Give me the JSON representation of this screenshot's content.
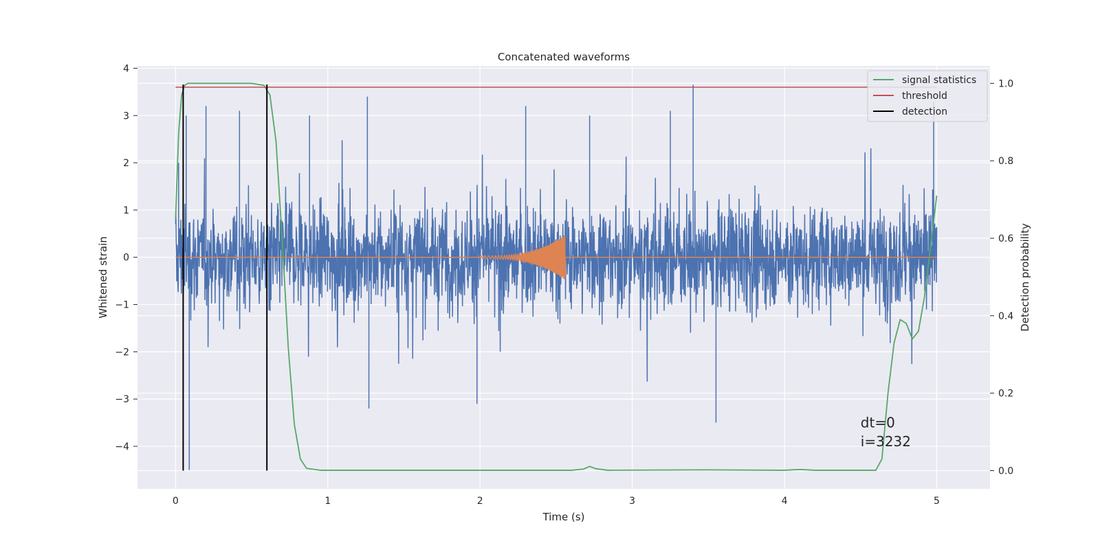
{
  "chart_data": {
    "type": "line",
    "title": "Concatenated waveforms",
    "xlabel": "Time (s)",
    "ylabel": "Whitened strain",
    "ylabel_right": "Detection probability",
    "xlim": [
      -0.25,
      5.35
    ],
    "ylim": [
      -4.9,
      4.05
    ],
    "ylim_right": [
      -0.047,
      1.045
    ],
    "x_ticks": [
      0,
      1,
      2,
      3,
      4,
      5
    ],
    "y_ticks": [
      -4,
      -3,
      -2,
      -1,
      0,
      1,
      2,
      3,
      4
    ],
    "y_ticks_right": [
      0.0,
      0.2,
      0.4,
      0.6,
      0.8,
      1.0
    ],
    "y_tick_labels": [
      "−4",
      "−3",
      "−2",
      "−1",
      "0",
      "1",
      "2",
      "3",
      "4"
    ],
    "y_tick_labels_right": [
      "0.0",
      "0.2",
      "0.4",
      "0.6",
      "0.8",
      "1.0"
    ],
    "grid": true,
    "legend_position": "top-right",
    "series": [
      {
        "key": "strain",
        "axis": "left",
        "color": "#4c72b0",
        "note_style": "dense noise band",
        "x_range": [
          0,
          5
        ],
        "core_amplitude": 1.2,
        "spike_maxima": [
          [
            0.02,
            2.0
          ],
          [
            0.07,
            3.0
          ],
          [
            0.09,
            -4.5
          ],
          [
            0.2,
            3.2
          ],
          [
            0.42,
            3.1
          ],
          [
            0.88,
            3.0
          ],
          [
            1.26,
            3.4
          ],
          [
            1.27,
            -3.2
          ],
          [
            1.98,
            -3.1
          ],
          [
            2.3,
            3.2
          ],
          [
            2.72,
            3.0
          ],
          [
            3.25,
            3.1
          ],
          [
            3.4,
            3.65
          ],
          [
            3.55,
            -3.5
          ],
          [
            4.98,
            3.3
          ]
        ]
      },
      {
        "key": "waveform",
        "axis": "left",
        "color": "#dd8452",
        "x_range": [
          0,
          5
        ],
        "chirp_start": 2.0,
        "chirp_end": 2.56,
        "chirp_peak_amplitude": 0.45
      },
      {
        "name": "signal statistics",
        "axis": "right",
        "color": "#55a868",
        "x": [
          0.0,
          0.02,
          0.04,
          0.06,
          0.08,
          0.12,
          0.3,
          0.5,
          0.58,
          0.62,
          0.66,
          0.7,
          0.74,
          0.78,
          0.82,
          0.86,
          0.95,
          1.5,
          2.6,
          2.68,
          2.72,
          2.76,
          2.84,
          3.5,
          4.0,
          4.1,
          4.2,
          4.6,
          4.64,
          4.68,
          4.72,
          4.76,
          4.8,
          4.84,
          4.88,
          4.92,
          4.96,
          5.0
        ],
        "y": [
          0.65,
          0.87,
          0.97,
          0.995,
          1.0,
          1.0,
          1.0,
          1.0,
          0.995,
          0.97,
          0.85,
          0.6,
          0.32,
          0.12,
          0.03,
          0.006,
          0.001,
          0.001,
          0.001,
          0.004,
          0.011,
          0.005,
          0.001,
          0.002,
          0.001,
          0.003,
          0.001,
          0.001,
          0.03,
          0.2,
          0.33,
          0.39,
          0.38,
          0.34,
          0.36,
          0.45,
          0.58,
          0.71
        ]
      },
      {
        "name": "threshold",
        "axis": "right",
        "color": "#c44e52",
        "x": [
          0,
          5
        ],
        "y": [
          0.99,
          0.99
        ]
      },
      {
        "name": "detection",
        "axis": "right",
        "color": "#000000",
        "type": "vlines",
        "x": [
          0.05,
          0.6
        ],
        "y_range": [
          0.0,
          0.997
        ]
      }
    ],
    "annotations": [
      {
        "text": "dt=0",
        "x": 4.5,
        "y": -3.6
      },
      {
        "text": "i=3232",
        "x": 4.5,
        "y": -4.0
      }
    ]
  }
}
